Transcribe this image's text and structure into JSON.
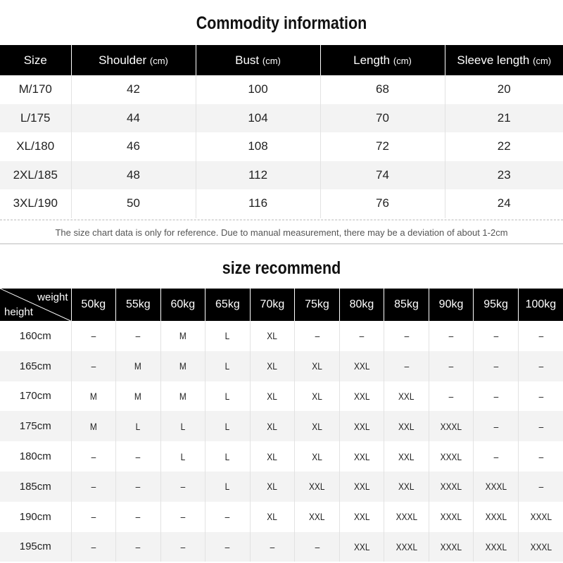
{
  "commodity": {
    "title": "Commodity information",
    "columns": [
      {
        "name": "Size",
        "unit": ""
      },
      {
        "name": "Shoulder",
        "unit": "(cm)"
      },
      {
        "name": "Bust",
        "unit": "(cm)"
      },
      {
        "name": "Length",
        "unit": "(cm)"
      },
      {
        "name": "Sleeve length",
        "unit": "(cm)"
      }
    ],
    "rows": [
      [
        "M/170",
        "42",
        "100",
        "68",
        "20"
      ],
      [
        "L/175",
        "44",
        "104",
        "70",
        "21"
      ],
      [
        "XL/180",
        "46",
        "108",
        "72",
        "22"
      ],
      [
        "2XL/185",
        "48",
        "112",
        "74",
        "23"
      ],
      [
        "3XL/190",
        "50",
        "116",
        "76",
        "24"
      ]
    ],
    "note": "The size chart data is only for reference. Due to manual measurement, there may be a deviation of about 1-2cm"
  },
  "recommend": {
    "title": "size recommend",
    "corner_weight": "weight",
    "corner_height": "height",
    "weights": [
      "50kg",
      "55kg",
      "60kg",
      "65kg",
      "70kg",
      "75kg",
      "80kg",
      "85kg",
      "90kg",
      "95kg",
      "100kg"
    ],
    "rows": [
      {
        "height": "160cm",
        "sizes": [
          "–",
          "–",
          "M",
          "L",
          "XL",
          "–",
          "–",
          "–",
          "–",
          "–",
          "–"
        ]
      },
      {
        "height": "165cm",
        "sizes": [
          "–",
          "M",
          "M",
          "L",
          "XL",
          "XL",
          "XXL",
          "–",
          "–",
          "–",
          "–"
        ]
      },
      {
        "height": "170cm",
        "sizes": [
          "M",
          "M",
          "M",
          "L",
          "XL",
          "XL",
          "XXL",
          "XXL",
          "–",
          "–",
          "–"
        ]
      },
      {
        "height": "175cm",
        "sizes": [
          "M",
          "L",
          "L",
          "L",
          "XL",
          "XL",
          "XXL",
          "XXL",
          "XXXL",
          "–",
          "–"
        ]
      },
      {
        "height": "180cm",
        "sizes": [
          "–",
          "–",
          "L",
          "L",
          "XL",
          "XL",
          "XXL",
          "XXL",
          "XXXL",
          "–",
          "–"
        ]
      },
      {
        "height": "185cm",
        "sizes": [
          "–",
          "–",
          "–",
          "L",
          "XL",
          "XXL",
          "XXL",
          "XXL",
          "XXXL",
          "XXXL",
          "–"
        ]
      },
      {
        "height": "190cm",
        "sizes": [
          "–",
          "–",
          "–",
          "–",
          "XL",
          "XXL",
          "XXL",
          "XXXL",
          "XXXL",
          "XXXL",
          "XXXL"
        ]
      },
      {
        "height": "195cm",
        "sizes": [
          "–",
          "–",
          "–",
          "–",
          "–",
          "–",
          "XXL",
          "XXXL",
          "XXXL",
          "XXXL",
          "XXXL"
        ]
      }
    ]
  },
  "colors": {
    "header_bg": "#000000",
    "header_text": "#ffffff",
    "stripe": "#f3f3f3"
  }
}
